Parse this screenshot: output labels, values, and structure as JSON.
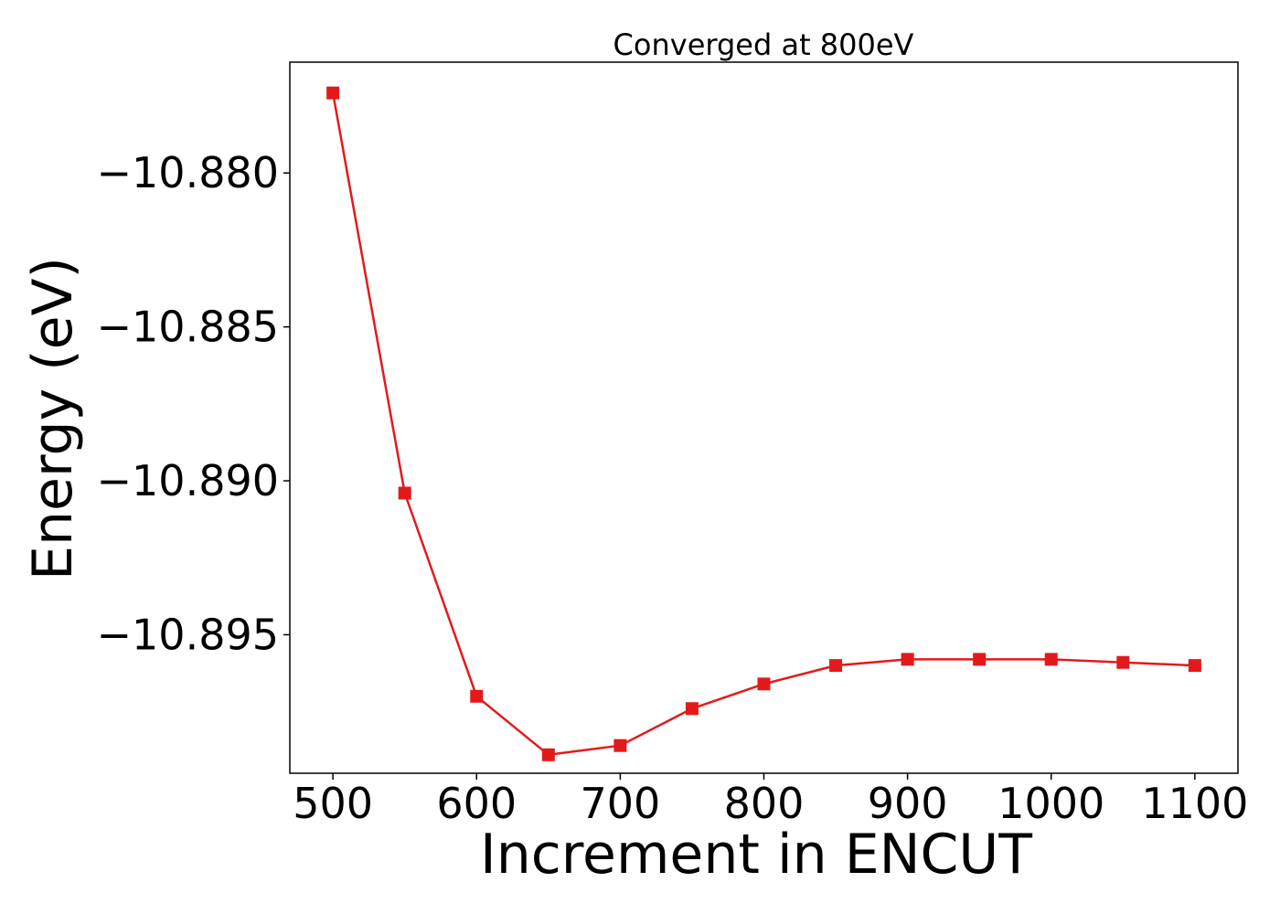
{
  "chart_data": {
    "type": "line",
    "title": "Converged at 800eV",
    "xlabel": "Increment in ENCUT",
    "ylabel": "Energy (eV)",
    "x": [
      500,
      550,
      600,
      650,
      700,
      750,
      800,
      850,
      900,
      950,
      1000,
      1050,
      1100
    ],
    "series": [
      {
        "name": "",
        "values": [
          -10.8774,
          -10.8904,
          -10.897,
          -10.8989,
          -10.8986,
          -10.8974,
          -10.8966,
          -10.896,
          -10.8958,
          -10.8958,
          -10.8958,
          -10.8959,
          -10.896
        ],
        "color": "#e31a1c",
        "marker": "square"
      }
    ],
    "xticks": [
      500,
      600,
      700,
      800,
      900,
      1000,
      1100
    ],
    "xtick_labels": [
      "500",
      "600",
      "700",
      "800",
      "900",
      "1000",
      "1100"
    ],
    "yticks": [
      -10.88,
      -10.885,
      -10.89,
      -10.895
    ],
    "ytick_labels": [
      "−10.880",
      "−10.885",
      "−10.890",
      "−10.895"
    ],
    "xlim": [
      470,
      1130
    ],
    "ylim": [
      -10.8995,
      -10.8764
    ],
    "grid": false,
    "legend": "none"
  }
}
